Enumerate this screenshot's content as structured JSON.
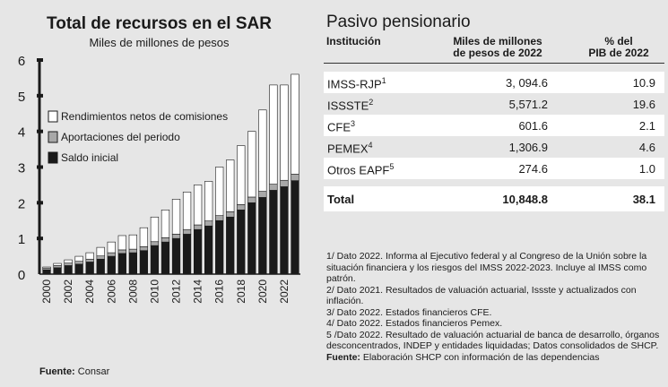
{
  "chart": {
    "title": "Total de recursos en el SAR",
    "subtitle": "Miles de millones de pesos",
    "source_label": "Fuente:",
    "source_text": "Consar"
  },
  "chart_data": {
    "type": "bar",
    "stacked": true,
    "categories": [
      "2000",
      "2001",
      "2002",
      "2003",
      "2004",
      "2005",
      "2006",
      "2007",
      "2008",
      "2009",
      "2010",
      "2011",
      "2012",
      "2013",
      "2014",
      "2015",
      "2016",
      "2017",
      "2018",
      "2019",
      "2020",
      "2021",
      "2022",
      "2023"
    ],
    "x_tick_labels": [
      "2000",
      "2002",
      "2004",
      "2006",
      "2008",
      "2010",
      "2012",
      "2014",
      "2016",
      "2018",
      "2020",
      "2022"
    ],
    "series": [
      {
        "name": "Saldo inicial",
        "color": "#1a1a1a",
        "values": [
          0.12,
          0.18,
          0.24,
          0.28,
          0.34,
          0.42,
          0.5,
          0.58,
          0.6,
          0.66,
          0.8,
          0.9,
          1.0,
          1.12,
          1.25,
          1.35,
          1.5,
          1.6,
          1.8,
          2.0,
          2.15,
          2.35,
          2.45,
          2.62
        ]
      },
      {
        "name": "Aportaciones del periodo",
        "color": "#a8a8a8",
        "values": [
          0.05,
          0.06,
          0.07,
          0.08,
          0.08,
          0.09,
          0.1,
          0.1,
          0.1,
          0.11,
          0.11,
          0.12,
          0.12,
          0.13,
          0.13,
          0.14,
          0.14,
          0.15,
          0.15,
          0.16,
          0.17,
          0.17,
          0.18,
          0.18
        ]
      },
      {
        "name": "Rendimientos netos de comisiones",
        "color": "#ffffff",
        "values": [
          0.03,
          0.06,
          0.09,
          0.14,
          0.18,
          0.24,
          0.3,
          0.4,
          0.4,
          0.53,
          0.69,
          0.78,
          0.98,
          1.05,
          1.12,
          1.11,
          1.36,
          1.45,
          1.65,
          1.84,
          2.28,
          2.78,
          2.67,
          2.8
        ]
      }
    ],
    "ylim": [
      0,
      6
    ],
    "yticks": [
      0,
      1,
      2,
      3,
      4,
      5,
      6
    ],
    "legend_position": "left-middle",
    "grid": false
  },
  "table": {
    "title": "Pasivo pensionario",
    "header_institucion": "Institución",
    "header_miles_line1": "Miles de millones",
    "header_miles_line2": "de pesos de 2022",
    "header_pib_line1": "% del",
    "header_pib_line2": "PIB de 2022",
    "rows": [
      {
        "name": "IMSS-RJP",
        "note": "1",
        "miles": "3, 094.6",
        "pib": "10.9"
      },
      {
        "name": "ISSSTE",
        "note": "2",
        "miles": "5,571.2",
        "pib": "19.6"
      },
      {
        "name": "CFE",
        "note": "3",
        "miles": "601.6",
        "pib": "2.1"
      },
      {
        "name": "PEMEX",
        "note": "4",
        "miles": "1,306.9",
        "pib": "4.6"
      },
      {
        "name": "Otros EAPF",
        "note": "5",
        "miles": "274.6",
        "pib": "1.0"
      }
    ],
    "total": {
      "name": "Total",
      "miles": "10,848.8",
      "pib": "38.1"
    }
  },
  "notes": {
    "n1": "1/ Dato 2022. Informa al Ejecutivo federal y al Congreso de la Unión sobre la situación financiera y los riesgos del IMSS 2022-2023. Incluye al IMSS como patrón.",
    "n2": "2/ Dato 2021. Resultados de valuación actuarial, Issste y actualizados con inflación.",
    "n3": "3/ Dato 2022. Estados financieros CFE.",
    "n4": "4/ Dato 2022. Estados financieros Pemex.",
    "n5": "5 /Dato 2022. Resultado de valuación actuarial de banca de desarrollo, órganos desconcentrados, INDEP y entidades liquidadas; Datos consolidados de SHCP.",
    "source_label": "Fuente:",
    "source_text": "Elaboración SHCP con información de las dependencias"
  }
}
